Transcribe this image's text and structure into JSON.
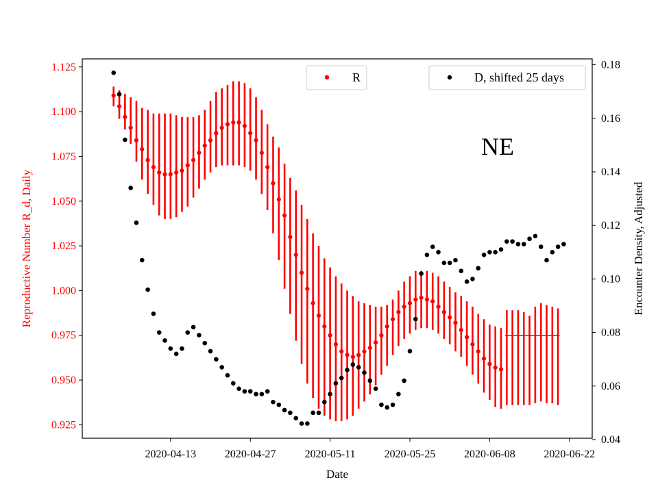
{
  "chart_data": {
    "type": "scatter",
    "annotation": "NE",
    "xlabel": "Date",
    "ylabel_left": "Reproductive Number R_d, Daily",
    "ylabel_right": "Encounter Density, Adjusted",
    "x_tick_labels": [
      "2020-04-13",
      "2020-04-27",
      "2020-05-11",
      "2020-05-25",
      "2020-06-08",
      "2020-06-22"
    ],
    "x_tick_days": [
      13,
      27,
      41,
      55,
      69,
      83
    ],
    "x_range_days": [
      -2.5,
      87
    ],
    "y_left_ticks": [
      "0.925",
      "0.950",
      "0.975",
      "1.000",
      "1.025",
      "1.050",
      "1.075",
      "1.100",
      "1.125"
    ],
    "y_left_range": [
      0.9175,
      1.1295
    ],
    "y_right_ticks": [
      "0.04",
      "0.06",
      "0.08",
      "0.10",
      "0.12",
      "0.14",
      "0.16",
      "0.18"
    ],
    "y_right_range": [
      0.0405,
      0.1822
    ],
    "colors": {
      "R": "#ff0000",
      "D": "#000000"
    },
    "legends": {
      "left": {
        "label": "R",
        "color": "#ff0000"
      },
      "right": {
        "label": "D, shifted 25 days",
        "color": "#000000"
      }
    },
    "series": [
      {
        "name": "R",
        "axis": "left",
        "marker": "point",
        "x_start_day": 3,
        "step_days": 1,
        "values": [
          1.109,
          1.103,
          1.097,
          1.091,
          1.084,
          1.079,
          1.073,
          1.069,
          1.066,
          1.065,
          1.065,
          1.066,
          1.067,
          1.07,
          1.073,
          1.077,
          1.081,
          1.084,
          1.088,
          1.091,
          1.093,
          1.094,
          1.094,
          1.092,
          1.088,
          1.084,
          1.077,
          1.069,
          1.06,
          1.051,
          1.042,
          1.03,
          1.02,
          1.01,
          1.001,
          0.993,
          0.986,
          0.98,
          0.975,
          0.97,
          0.966,
          0.964,
          0.963,
          0.964,
          0.966,
          0.968,
          0.971,
          0.975,
          0.98,
          0.984,
          0.988,
          0.991,
          0.993,
          0.995,
          0.996,
          0.995,
          0.994,
          0.991,
          0.988,
          0.985,
          0.982,
          0.978,
          0.974,
          0.97,
          0.966,
          0.962,
          0.959,
          0.957,
          0.956,
          null,
          null,
          null,
          null,
          null,
          null,
          null,
          null,
          null,
          null
        ],
        "err_low": [
          1.103,
          1.096,
          1.09,
          1.082,
          1.072,
          1.062,
          1.054,
          1.048,
          1.042,
          1.04,
          1.04,
          1.041,
          1.044,
          1.047,
          1.052,
          1.057,
          1.062,
          1.066,
          1.069,
          1.07,
          1.07,
          1.07,
          1.07,
          1.069,
          1.067,
          1.062,
          1.054,
          1.045,
          1.032,
          1.017,
          1.001,
          0.987,
          0.972,
          0.959,
          0.948,
          0.94,
          0.934,
          0.93,
          0.928,
          0.927,
          0.927,
          0.928,
          0.93,
          0.934,
          0.938,
          0.942,
          0.947,
          0.953,
          0.958,
          0.964,
          0.969,
          0.973,
          0.976,
          0.978,
          0.979,
          0.979,
          0.978,
          0.976,
          0.973,
          0.97,
          0.966,
          0.963,
          0.958,
          0.953,
          0.948,
          0.943,
          0.939,
          0.935,
          0.934,
          0.936,
          0.936,
          0.936,
          0.936,
          0.936,
          0.937,
          0.938,
          0.937,
          0.937,
          0.936
        ],
        "err_high": [
          1.114,
          1.112,
          1.11,
          1.108,
          1.106,
          1.102,
          1.101,
          1.099,
          1.099,
          1.099,
          1.099,
          1.098,
          1.097,
          1.097,
          1.097,
          1.098,
          1.101,
          1.106,
          1.111,
          1.113,
          1.115,
          1.117,
          1.117,
          1.116,
          1.113,
          1.108,
          1.101,
          1.093,
          1.086,
          1.08,
          1.071,
          1.063,
          1.056,
          1.048,
          1.04,
          1.032,
          1.025,
          1.018,
          1.013,
          1.008,
          1.004,
          1.0,
          0.997,
          0.994,
          0.993,
          0.992,
          0.991,
          0.991,
          0.992,
          0.995,
          1.0,
          1.005,
          1.008,
          1.011,
          1.011,
          1.011,
          1.01,
          1.008,
          1.005,
          1.002,
          0.999,
          0.997,
          0.994,
          0.991,
          0.987,
          0.984,
          0.981,
          0.98,
          0.979,
          0.989,
          0.989,
          0.989,
          0.988,
          0.986,
          0.991,
          0.993,
          0.992,
          0.991,
          0.99
        ],
        "tail_value": 0.975
      },
      {
        "name": "D, shifted 25 days",
        "axis": "right",
        "marker": "point",
        "x_days": [
          3,
          4,
          5,
          6,
          7,
          8,
          9,
          10,
          11,
          12,
          13,
          14,
          15,
          16,
          17,
          18,
          19,
          20,
          21,
          22,
          23,
          24,
          25,
          26,
          27,
          28,
          29,
          30,
          31,
          32,
          33,
          34,
          35,
          36,
          37,
          38,
          39,
          40,
          41,
          42,
          43,
          44,
          45,
          46,
          47,
          48,
          49,
          50,
          51,
          52,
          53,
          54,
          55,
          56,
          57,
          58,
          59,
          60,
          61,
          62,
          63,
          64,
          65,
          66,
          67,
          68,
          69,
          70,
          71,
          72,
          73,
          74,
          75,
          76,
          77,
          78,
          79,
          80,
          81,
          82,
          83,
          84,
          85,
          86
        ],
        "values": [
          0.177,
          0.169,
          0.152,
          0.134,
          0.121,
          0.107,
          0.096,
          0.087,
          0.08,
          0.077,
          0.074,
          0.072,
          0.074,
          0.08,
          0.082,
          0.079,
          0.076,
          0.073,
          0.07,
          0.067,
          0.064,
          0.061,
          0.059,
          0.058,
          0.058,
          0.057,
          0.057,
          0.058,
          0.054,
          0.053,
          0.051,
          0.05,
          0.048,
          0.046,
          0.046,
          0.05,
          0.05,
          0.054,
          0.057,
          0.061,
          0.063,
          0.066,
          0.068,
          0.067,
          0.065,
          0.062,
          0.059,
          0.053,
          0.052,
          0.053,
          0.057,
          0.062,
          0.073,
          0.085,
          0.102,
          0.109,
          0.112,
          0.11,
          0.106,
          0.106,
          0.107,
          0.103,
          0.099,
          0.1,
          0.104,
          0.109,
          0.11,
          0.11,
          0.111,
          0.114,
          0.114,
          0.113,
          0.113,
          0.115,
          0.116,
          0.112,
          0.107,
          0.11,
          0.112,
          0.113,
          null,
          null,
          null,
          null
        ]
      }
    ]
  }
}
